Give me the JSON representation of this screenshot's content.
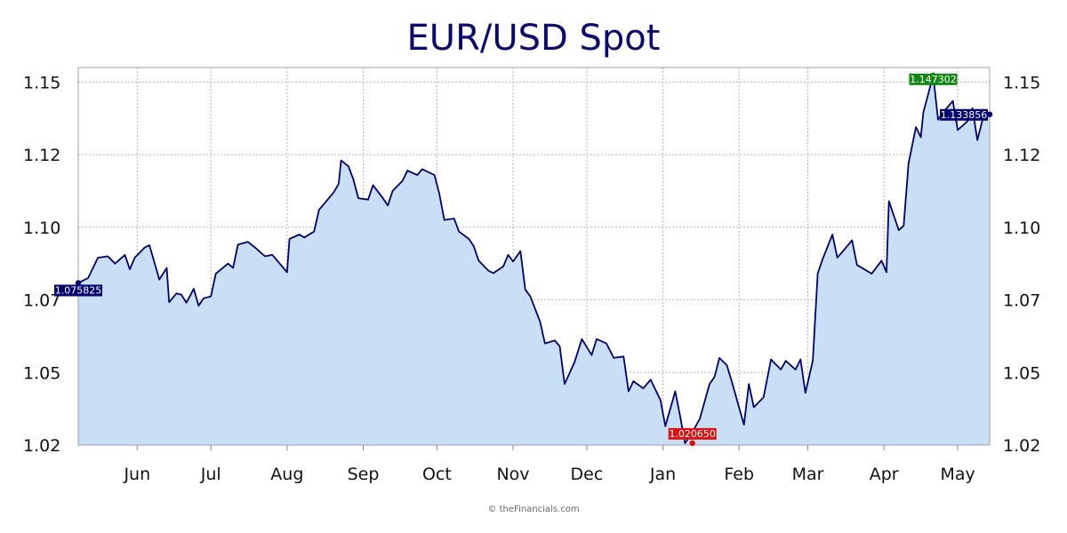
{
  "chart_data": {
    "type": "area",
    "title": "EUR/USD Spot",
    "xlabel": "",
    "ylabel": "",
    "ylim": [
      1.02,
      1.15
    ],
    "x_range": [
      "2024-05-08",
      "2025-05-14"
    ],
    "grid": true,
    "y_ticks": [
      {
        "value": 1.02,
        "label": "1.02"
      },
      {
        "value": 1.045,
        "label": "1.05"
      },
      {
        "value": 1.07,
        "label": "1.07"
      },
      {
        "value": 1.095,
        "label": "1.10"
      },
      {
        "value": 1.12,
        "label": "1.12"
      },
      {
        "value": 1.145,
        "label": "1.15"
      }
    ],
    "x_ticks": [
      {
        "date": "2024-06-01",
        "label": "Jun"
      },
      {
        "date": "2024-07-01",
        "label": "Jul"
      },
      {
        "date": "2024-08-01",
        "label": "Aug"
      },
      {
        "date": "2024-09-01",
        "label": "Sep"
      },
      {
        "date": "2024-10-01",
        "label": "Oct"
      },
      {
        "date": "2024-11-01",
        "label": "Nov"
      },
      {
        "date": "2024-12-01",
        "label": "Dec"
      },
      {
        "date": "2025-01-01",
        "label": "Jan"
      },
      {
        "date": "2025-02-01",
        "label": "Feb"
      },
      {
        "date": "2025-03-01",
        "label": "Mar"
      },
      {
        "date": "2025-04-01",
        "label": "Apr"
      },
      {
        "date": "2025-05-01",
        "label": "May"
      }
    ],
    "series": [
      {
        "color": "#00006e",
        "fill": "#c8dff5",
        "points": [
          [
            "2024-05-08",
            1.0758
          ],
          [
            "2024-05-12",
            1.0775
          ],
          [
            "2024-05-16",
            1.0845
          ],
          [
            "2024-05-20",
            1.085
          ],
          [
            "2024-05-23",
            1.0825
          ],
          [
            "2024-05-27",
            1.0855
          ],
          [
            "2024-05-29",
            1.0805
          ],
          [
            "2024-05-31",
            1.0845
          ],
          [
            "2024-06-04",
            1.088
          ],
          [
            "2024-06-06",
            1.0888
          ],
          [
            "2024-06-10",
            1.077
          ],
          [
            "2024-06-13",
            1.081
          ],
          [
            "2024-06-14",
            1.0692
          ],
          [
            "2024-06-17",
            1.0722
          ],
          [
            "2024-06-19",
            1.0718
          ],
          [
            "2024-06-21",
            1.069
          ],
          [
            "2024-06-24",
            1.0738
          ],
          [
            "2024-06-26",
            1.068
          ],
          [
            "2024-06-28",
            1.0705
          ],
          [
            "2024-07-01",
            1.0712
          ],
          [
            "2024-07-03",
            1.079
          ],
          [
            "2024-07-08",
            1.0825
          ],
          [
            "2024-07-10",
            1.081
          ],
          [
            "2024-07-12",
            1.089
          ],
          [
            "2024-07-16",
            1.09
          ],
          [
            "2024-07-19",
            1.088
          ],
          [
            "2024-07-23",
            1.085
          ],
          [
            "2024-07-26",
            1.0855
          ],
          [
            "2024-07-30",
            1.0815
          ],
          [
            "2024-08-01",
            1.0795
          ],
          [
            "2024-08-02",
            1.091
          ],
          [
            "2024-08-06",
            1.0925
          ],
          [
            "2024-08-08",
            1.0915
          ],
          [
            "2024-08-12",
            1.0935
          ],
          [
            "2024-08-14",
            1.101
          ],
          [
            "2024-08-16",
            1.103
          ],
          [
            "2024-08-20",
            1.107
          ],
          [
            "2024-08-22",
            1.11
          ],
          [
            "2024-08-23",
            1.118
          ],
          [
            "2024-08-26",
            1.116
          ],
          [
            "2024-08-28",
            1.1115
          ],
          [
            "2024-08-30",
            1.105
          ],
          [
            "2024-09-03",
            1.1045
          ],
          [
            "2024-09-05",
            1.1095
          ],
          [
            "2024-09-09",
            1.105
          ],
          [
            "2024-09-11",
            1.1025
          ],
          [
            "2024-09-13",
            1.1075
          ],
          [
            "2024-09-17",
            1.111
          ],
          [
            "2024-09-19",
            1.1145
          ],
          [
            "2024-09-23",
            1.113
          ],
          [
            "2024-09-25",
            1.115
          ],
          [
            "2024-09-30",
            1.113
          ],
          [
            "2024-10-02",
            1.1065
          ],
          [
            "2024-10-04",
            1.0975
          ],
          [
            "2024-10-08",
            1.098
          ],
          [
            "2024-10-10",
            1.0935
          ],
          [
            "2024-10-14",
            1.091
          ],
          [
            "2024-10-16",
            1.0885
          ],
          [
            "2024-10-18",
            1.0835
          ],
          [
            "2024-10-22",
            1.08
          ],
          [
            "2024-10-24",
            1.0792
          ],
          [
            "2024-10-28",
            1.0815
          ],
          [
            "2024-10-30",
            1.0855
          ],
          [
            "2024-11-01",
            1.0832
          ],
          [
            "2024-11-04",
            1.0868
          ],
          [
            "2024-11-06",
            1.0735
          ],
          [
            "2024-11-08",
            1.0712
          ],
          [
            "2024-11-12",
            1.0625
          ],
          [
            "2024-11-14",
            1.055
          ],
          [
            "2024-11-18",
            1.056
          ],
          [
            "2024-11-20",
            1.054
          ],
          [
            "2024-11-22",
            1.041
          ],
          [
            "2024-11-26",
            1.0485
          ],
          [
            "2024-11-29",
            1.0565
          ],
          [
            "2024-12-03",
            1.051
          ],
          [
            "2024-12-05",
            1.0565
          ],
          [
            "2024-12-09",
            1.055
          ],
          [
            "2024-12-12",
            1.05
          ],
          [
            "2024-12-16",
            1.0505
          ],
          [
            "2024-12-18",
            1.0385
          ],
          [
            "2024-12-20",
            1.042
          ],
          [
            "2024-12-24",
            1.0395
          ],
          [
            "2024-12-27",
            1.0425
          ],
          [
            "2024-12-31",
            1.0355
          ],
          [
            "2025-01-02",
            1.0265
          ],
          [
            "2025-01-06",
            1.0385
          ],
          [
            "2025-01-08",
            1.03
          ],
          [
            "2025-01-10",
            1.0206
          ],
          [
            "2025-01-13",
            1.0245
          ],
          [
            "2025-01-16",
            1.029
          ],
          [
            "2025-01-20",
            1.041
          ],
          [
            "2025-01-22",
            1.0435
          ],
          [
            "2025-01-24",
            1.05
          ],
          [
            "2025-01-27",
            1.0475
          ],
          [
            "2025-01-29",
            1.042
          ],
          [
            "2025-02-03",
            1.027
          ],
          [
            "2025-02-05",
            1.041
          ],
          [
            "2025-02-07",
            1.033
          ],
          [
            "2025-02-11",
            1.0365
          ],
          [
            "2025-02-14",
            1.0495
          ],
          [
            "2025-02-18",
            1.046
          ],
          [
            "2025-02-20",
            1.049
          ],
          [
            "2025-02-24",
            1.046
          ],
          [
            "2025-02-26",
            1.0495
          ],
          [
            "2025-02-28",
            1.038
          ],
          [
            "2025-03-03",
            1.049
          ],
          [
            "2025-03-05",
            1.079
          ],
          [
            "2025-03-07",
            1.084
          ],
          [
            "2025-03-11",
            1.0925
          ],
          [
            "2025-03-13",
            1.0845
          ],
          [
            "2025-03-17",
            1.0885
          ],
          [
            "2025-03-19",
            1.0905
          ],
          [
            "2025-03-21",
            1.082
          ],
          [
            "2025-03-25",
            1.08
          ],
          [
            "2025-03-27",
            1.079
          ],
          [
            "2025-03-31",
            1.0835
          ],
          [
            "2025-04-02",
            1.0795
          ],
          [
            "2025-04-03",
            1.104
          ],
          [
            "2025-04-07",
            1.094
          ],
          [
            "2025-04-09",
            1.0955
          ],
          [
            "2025-04-11",
            1.117
          ],
          [
            "2025-04-14",
            1.1295
          ],
          [
            "2025-04-16",
            1.126
          ],
          [
            "2025-04-17",
            1.1345
          ],
          [
            "2025-04-21",
            1.1473
          ],
          [
            "2025-04-23",
            1.132
          ],
          [
            "2025-04-25",
            1.1345
          ],
          [
            "2025-04-29",
            1.1385
          ],
          [
            "2025-05-01",
            1.1285
          ],
          [
            "2025-05-05",
            1.1315
          ],
          [
            "2025-05-07",
            1.136
          ],
          [
            "2025-05-09",
            1.125
          ],
          [
            "2025-05-12",
            1.135
          ],
          [
            "2025-05-14",
            1.1339
          ]
        ]
      }
    ],
    "annotations": [
      {
        "date": "2024-05-08",
        "value": 1.075825,
        "label": "1.075825",
        "color": "#00006e",
        "side": "start"
      },
      {
        "date": "2025-01-13",
        "value": 1.02065,
        "label": "1.020650",
        "color": "#dd1111",
        "side": "low"
      },
      {
        "date": "2025-04-21",
        "value": 1.147302,
        "label": "1.147302",
        "color": "#118811",
        "side": "high"
      },
      {
        "date": "2025-05-14",
        "value": 1.133856,
        "label": "1.133856",
        "color": "#00006e",
        "side": "end"
      }
    ]
  },
  "footer": {
    "copyright": "© theFinancials.com"
  }
}
